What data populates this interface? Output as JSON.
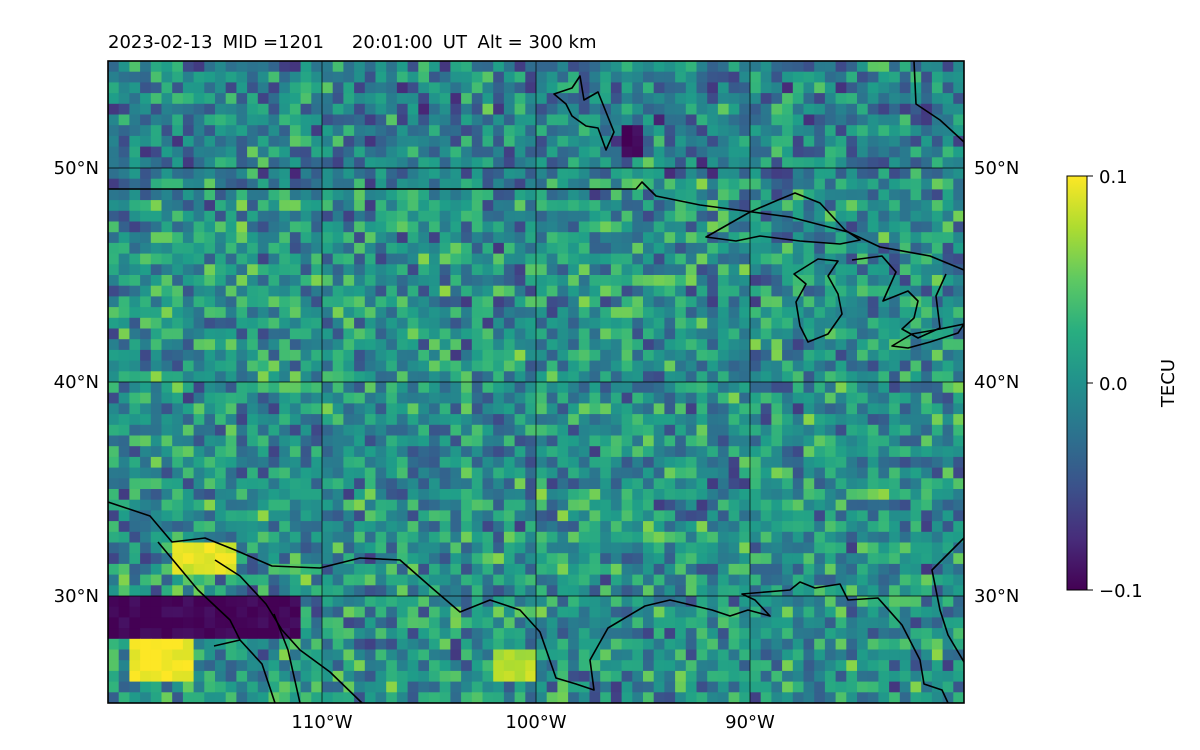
{
  "header": {
    "date": "2023-02-13",
    "mid": "MID =1201",
    "time": "20:01:00",
    "time_unit": "UT",
    "alt": "Alt = 300 km"
  },
  "map": {
    "lon_range": [
      -120,
      -80
    ],
    "lat_range": [
      25,
      55
    ],
    "gridlines_lon": [
      -110,
      -100,
      -90
    ],
    "gridlines_lat": [
      30,
      40,
      50
    ],
    "x_tick_labels": [
      "110°W",
      "100°W",
      "90°W"
    ],
    "y_tick_labels": [
      "30°N",
      "40°N",
      "50°N"
    ],
    "grid": true
  },
  "colorbar": {
    "label": "TECU",
    "ticks": [
      "0.1",
      "0.0",
      "−0.1"
    ],
    "min": -0.1,
    "max": 0.1,
    "colormap": "viridis"
  },
  "chart_data": {
    "type": "heatmap",
    "title": "2023-02-13  MID =1201    20:01:00  UT  Alt = 300 km",
    "xlabel": "",
    "ylabel": "",
    "x_range_deg": [
      -120,
      -80
    ],
    "y_range_deg": [
      25,
      55
    ],
    "cell_size_deg": 0.5,
    "value_range": [
      -0.1,
      0.1
    ],
    "colorbar_label": "TECU",
    "features": [
      {
        "name": "strong negative band",
        "lon": [
          -120,
          -111
        ],
        "lat": [
          28,
          30
        ],
        "value": -0.1
      },
      {
        "name": "strong positive patch",
        "lon": [
          -119,
          -116
        ],
        "lat": [
          26,
          28
        ],
        "value": 0.1
      },
      {
        "name": "positive patch",
        "lon": [
          -117,
          -114
        ],
        "lat": [
          31,
          32.5
        ],
        "value": 0.09
      },
      {
        "name": "negative patch",
        "lon": [
          -96,
          -95
        ],
        "lat": [
          50.5,
          52
        ],
        "value": -0.1
      },
      {
        "name": "positive patch",
        "lon": [
          -102,
          -100
        ],
        "lat": [
          26,
          27.5
        ],
        "value": 0.08
      }
    ]
  }
}
